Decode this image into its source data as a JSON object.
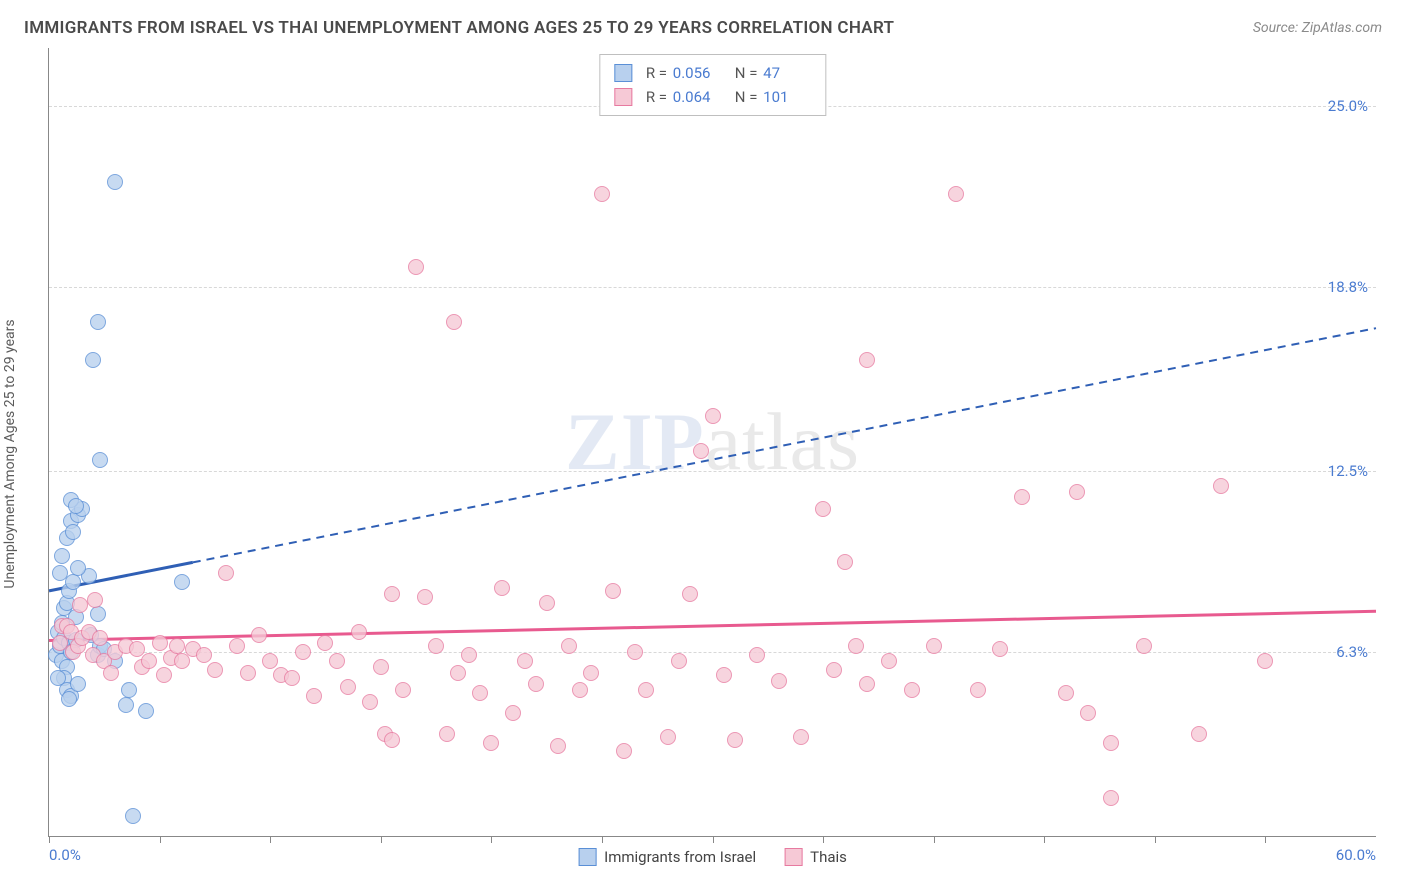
{
  "title": "IMMIGRANTS FROM ISRAEL VS THAI UNEMPLOYMENT AMONG AGES 25 TO 29 YEARS CORRELATION CHART",
  "source": "Source: ZipAtlas.com",
  "y_axis_label": "Unemployment Among Ages 25 to 29 years",
  "watermark": {
    "left": "ZIP",
    "right": "atlas"
  },
  "chart": {
    "type": "scatter",
    "xlim": [
      0,
      60
    ],
    "ylim": [
      0,
      27
    ],
    "x_origin_label": "0.0%",
    "x_max_label": "60.0%",
    "x_ticks": [
      0,
      5,
      10,
      15,
      20,
      25,
      30,
      35,
      40,
      45,
      50,
      55
    ],
    "y_ticks": [
      {
        "value": 6.3,
        "label": "6.3%"
      },
      {
        "value": 12.5,
        "label": "12.5%"
      },
      {
        "value": 18.8,
        "label": "18.8%"
      },
      {
        "value": 25.0,
        "label": "25.0%"
      }
    ],
    "grid_color": "#d8d8d8",
    "background_color": "#ffffff",
    "point_radius": 8,
    "series": [
      {
        "id": "israel",
        "label": "Immigrants from Israel",
        "R": "0.056",
        "N": "47",
        "fill": "#b8d0ee",
        "stroke": "#5a8fd6",
        "trend_color": "#2f5fb5",
        "trend": {
          "x1": 0,
          "y1": 8.4,
          "x2": 60,
          "y2": 17.4,
          "solid_until_x": 6.5
        },
        "points": [
          [
            0.3,
            6.2
          ],
          [
            0.4,
            7.0
          ],
          [
            0.5,
            6.5
          ],
          [
            0.6,
            6.0
          ],
          [
            0.7,
            6.8
          ],
          [
            0.8,
            5.8
          ],
          [
            0.9,
            6.6
          ],
          [
            1.0,
            6.3
          ],
          [
            0.6,
            7.3
          ],
          [
            0.7,
            7.8
          ],
          [
            0.8,
            8.0
          ],
          [
            0.9,
            8.4
          ],
          [
            1.1,
            8.7
          ],
          [
            1.2,
            7.5
          ],
          [
            0.5,
            9.0
          ],
          [
            0.6,
            9.6
          ],
          [
            0.8,
            10.2
          ],
          [
            1.0,
            10.8
          ],
          [
            1.1,
            10.4
          ],
          [
            1.3,
            11.0
          ],
          [
            1.5,
            11.2
          ],
          [
            1.0,
            11.5
          ],
          [
            1.2,
            11.3
          ],
          [
            0.7,
            5.4
          ],
          [
            0.8,
            5.0
          ],
          [
            1.0,
            4.8
          ],
          [
            1.3,
            5.2
          ],
          [
            2.2,
            6.2
          ],
          [
            2.3,
            6.5
          ],
          [
            2.5,
            6.4
          ],
          [
            2.2,
            7.6
          ],
          [
            3.0,
            6.0
          ],
          [
            3.5,
            4.5
          ],
          [
            3.6,
            5.0
          ],
          [
            4.4,
            4.3
          ],
          [
            3.8,
            0.7
          ],
          [
            2.3,
            12.9
          ],
          [
            2.2,
            17.6
          ],
          [
            2.0,
            16.3
          ],
          [
            3.0,
            22.4
          ],
          [
            1.8,
            8.9
          ],
          [
            1.2,
            6.7
          ],
          [
            1.9,
            6.9
          ],
          [
            1.3,
            9.2
          ],
          [
            6.0,
            8.7
          ],
          [
            0.9,
            4.7
          ],
          [
            0.4,
            5.4
          ]
        ]
      },
      {
        "id": "thai",
        "label": "Thais",
        "R": "0.064",
        "N": "101",
        "fill": "#f6c9d6",
        "stroke": "#e77aa0",
        "trend_color": "#e85a8f",
        "trend": {
          "x1": 0,
          "y1": 6.7,
          "x2": 60,
          "y2": 7.7,
          "solid_until_x": 60
        },
        "points": [
          [
            0.5,
            6.6
          ],
          [
            0.6,
            7.2
          ],
          [
            0.8,
            7.2
          ],
          [
            1.0,
            7.0
          ],
          [
            1.1,
            6.3
          ],
          [
            1.3,
            6.5
          ],
          [
            1.5,
            6.8
          ],
          [
            1.8,
            7.0
          ],
          [
            2.0,
            6.2
          ],
          [
            2.3,
            6.8
          ],
          [
            2.5,
            6.0
          ],
          [
            2.8,
            5.6
          ],
          [
            3.0,
            6.3
          ],
          [
            3.5,
            6.5
          ],
          [
            4.0,
            6.4
          ],
          [
            4.2,
            5.8
          ],
          [
            4.5,
            6.0
          ],
          [
            5.0,
            6.6
          ],
          [
            5.2,
            5.5
          ],
          [
            5.5,
            6.1
          ],
          [
            5.8,
            6.5
          ],
          [
            6.0,
            6.0
          ],
          [
            6.5,
            6.4
          ],
          [
            7.0,
            6.2
          ],
          [
            7.5,
            5.7
          ],
          [
            8.0,
            9.0
          ],
          [
            8.5,
            6.5
          ],
          [
            9.0,
            5.6
          ],
          [
            9.5,
            6.9
          ],
          [
            10.0,
            6.0
          ],
          [
            10.5,
            5.5
          ],
          [
            11.0,
            5.4
          ],
          [
            11.5,
            6.3
          ],
          [
            12.0,
            4.8
          ],
          [
            12.5,
            6.6
          ],
          [
            13.0,
            6.0
          ],
          [
            13.5,
            5.1
          ],
          [
            14.0,
            7.0
          ],
          [
            14.5,
            4.6
          ],
          [
            15.0,
            5.8
          ],
          [
            15.2,
            3.5
          ],
          [
            15.5,
            8.3
          ],
          [
            15.5,
            3.3
          ],
          [
            16.0,
            5.0
          ],
          [
            16.6,
            19.5
          ],
          [
            17.0,
            8.2
          ],
          [
            17.5,
            6.5
          ],
          [
            18.0,
            3.5
          ],
          [
            18.5,
            5.6
          ],
          [
            18.3,
            17.6
          ],
          [
            19.0,
            6.2
          ],
          [
            19.5,
            4.9
          ],
          [
            20.0,
            3.2
          ],
          [
            20.5,
            8.5
          ],
          [
            21.0,
            4.2
          ],
          [
            21.5,
            6.0
          ],
          [
            22.0,
            5.2
          ],
          [
            22.5,
            8.0
          ],
          [
            23.0,
            3.1
          ],
          [
            23.5,
            6.5
          ],
          [
            24.0,
            5.0
          ],
          [
            24.5,
            5.6
          ],
          [
            25.0,
            22.0
          ],
          [
            25.5,
            8.4
          ],
          [
            26.0,
            2.9
          ],
          [
            26.5,
            6.3
          ],
          [
            27.0,
            5.0
          ],
          [
            28.0,
            3.4
          ],
          [
            28.5,
            6.0
          ],
          [
            29.0,
            8.3
          ],
          [
            29.5,
            13.2
          ],
          [
            30.0,
            14.4
          ],
          [
            30.5,
            5.5
          ],
          [
            31.0,
            3.3
          ],
          [
            32.0,
            6.2
          ],
          [
            33.0,
            5.3
          ],
          [
            34.0,
            3.4
          ],
          [
            35.0,
            11.2
          ],
          [
            35.5,
            5.7
          ],
          [
            36.0,
            9.4
          ],
          [
            36.5,
            6.5
          ],
          [
            37.0,
            16.3
          ],
          [
            37.0,
            5.2
          ],
          [
            38.0,
            6.0
          ],
          [
            39.0,
            5.0
          ],
          [
            40.0,
            6.5
          ],
          [
            41.0,
            22.0
          ],
          [
            42.0,
            5.0
          ],
          [
            43.0,
            6.4
          ],
          [
            44.0,
            11.6
          ],
          [
            46.0,
            4.9
          ],
          [
            46.5,
            11.8
          ],
          [
            47.0,
            4.2
          ],
          [
            48.0,
            3.2
          ],
          [
            48.0,
            1.3
          ],
          [
            49.5,
            6.5
          ],
          [
            52.0,
            3.5
          ],
          [
            53.0,
            12.0
          ],
          [
            55.0,
            6.0
          ],
          [
            1.4,
            7.9
          ],
          [
            2.1,
            8.1
          ]
        ]
      }
    ],
    "legend_bottom": [
      {
        "series": 0
      },
      {
        "series": 1
      }
    ]
  }
}
